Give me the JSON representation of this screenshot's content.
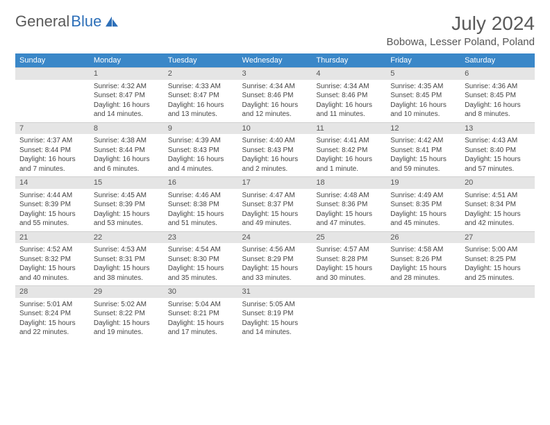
{
  "logo": {
    "general": "General",
    "blue": "Blue"
  },
  "title": "July 2024",
  "location": "Bobowa, Lesser Poland, Poland",
  "colors": {
    "header_bg": "#3a87c8",
    "header_text": "#ffffff",
    "daynum_bg": "#e5e5e5",
    "text": "#444444",
    "title_text": "#5a5a5a",
    "logo_blue": "#2d6fb8"
  },
  "daynames": [
    "Sunday",
    "Monday",
    "Tuesday",
    "Wednesday",
    "Thursday",
    "Friday",
    "Saturday"
  ],
  "weeks": [
    [
      null,
      {
        "n": "1",
        "sunrise": "4:32 AM",
        "sunset": "8:47 PM",
        "daylight": "16 hours and 14 minutes."
      },
      {
        "n": "2",
        "sunrise": "4:33 AM",
        "sunset": "8:47 PM",
        "daylight": "16 hours and 13 minutes."
      },
      {
        "n": "3",
        "sunrise": "4:34 AM",
        "sunset": "8:46 PM",
        "daylight": "16 hours and 12 minutes."
      },
      {
        "n": "4",
        "sunrise": "4:34 AM",
        "sunset": "8:46 PM",
        "daylight": "16 hours and 11 minutes."
      },
      {
        "n": "5",
        "sunrise": "4:35 AM",
        "sunset": "8:45 PM",
        "daylight": "16 hours and 10 minutes."
      },
      {
        "n": "6",
        "sunrise": "4:36 AM",
        "sunset": "8:45 PM",
        "daylight": "16 hours and 8 minutes."
      }
    ],
    [
      {
        "n": "7",
        "sunrise": "4:37 AM",
        "sunset": "8:44 PM",
        "daylight": "16 hours and 7 minutes."
      },
      {
        "n": "8",
        "sunrise": "4:38 AM",
        "sunset": "8:44 PM",
        "daylight": "16 hours and 6 minutes."
      },
      {
        "n": "9",
        "sunrise": "4:39 AM",
        "sunset": "8:43 PM",
        "daylight": "16 hours and 4 minutes."
      },
      {
        "n": "10",
        "sunrise": "4:40 AM",
        "sunset": "8:43 PM",
        "daylight": "16 hours and 2 minutes."
      },
      {
        "n": "11",
        "sunrise": "4:41 AM",
        "sunset": "8:42 PM",
        "daylight": "16 hours and 1 minute."
      },
      {
        "n": "12",
        "sunrise": "4:42 AM",
        "sunset": "8:41 PM",
        "daylight": "15 hours and 59 minutes."
      },
      {
        "n": "13",
        "sunrise": "4:43 AM",
        "sunset": "8:40 PM",
        "daylight": "15 hours and 57 minutes."
      }
    ],
    [
      {
        "n": "14",
        "sunrise": "4:44 AM",
        "sunset": "8:39 PM",
        "daylight": "15 hours and 55 minutes."
      },
      {
        "n": "15",
        "sunrise": "4:45 AM",
        "sunset": "8:39 PM",
        "daylight": "15 hours and 53 minutes."
      },
      {
        "n": "16",
        "sunrise": "4:46 AM",
        "sunset": "8:38 PM",
        "daylight": "15 hours and 51 minutes."
      },
      {
        "n": "17",
        "sunrise": "4:47 AM",
        "sunset": "8:37 PM",
        "daylight": "15 hours and 49 minutes."
      },
      {
        "n": "18",
        "sunrise": "4:48 AM",
        "sunset": "8:36 PM",
        "daylight": "15 hours and 47 minutes."
      },
      {
        "n": "19",
        "sunrise": "4:49 AM",
        "sunset": "8:35 PM",
        "daylight": "15 hours and 45 minutes."
      },
      {
        "n": "20",
        "sunrise": "4:51 AM",
        "sunset": "8:34 PM",
        "daylight": "15 hours and 42 minutes."
      }
    ],
    [
      {
        "n": "21",
        "sunrise": "4:52 AM",
        "sunset": "8:32 PM",
        "daylight": "15 hours and 40 minutes."
      },
      {
        "n": "22",
        "sunrise": "4:53 AM",
        "sunset": "8:31 PM",
        "daylight": "15 hours and 38 minutes."
      },
      {
        "n": "23",
        "sunrise": "4:54 AM",
        "sunset": "8:30 PM",
        "daylight": "15 hours and 35 minutes."
      },
      {
        "n": "24",
        "sunrise": "4:56 AM",
        "sunset": "8:29 PM",
        "daylight": "15 hours and 33 minutes."
      },
      {
        "n": "25",
        "sunrise": "4:57 AM",
        "sunset": "8:28 PM",
        "daylight": "15 hours and 30 minutes."
      },
      {
        "n": "26",
        "sunrise": "4:58 AM",
        "sunset": "8:26 PM",
        "daylight": "15 hours and 28 minutes."
      },
      {
        "n": "27",
        "sunrise": "5:00 AM",
        "sunset": "8:25 PM",
        "daylight": "15 hours and 25 minutes."
      }
    ],
    [
      {
        "n": "28",
        "sunrise": "5:01 AM",
        "sunset": "8:24 PM",
        "daylight": "15 hours and 22 minutes."
      },
      {
        "n": "29",
        "sunrise": "5:02 AM",
        "sunset": "8:22 PM",
        "daylight": "15 hours and 19 minutes."
      },
      {
        "n": "30",
        "sunrise": "5:04 AM",
        "sunset": "8:21 PM",
        "daylight": "15 hours and 17 minutes."
      },
      {
        "n": "31",
        "sunrise": "5:05 AM",
        "sunset": "8:19 PM",
        "daylight": "15 hours and 14 minutes."
      },
      null,
      null,
      null
    ]
  ],
  "labels": {
    "sunrise": "Sunrise:",
    "sunset": "Sunset:",
    "daylight": "Daylight:"
  }
}
